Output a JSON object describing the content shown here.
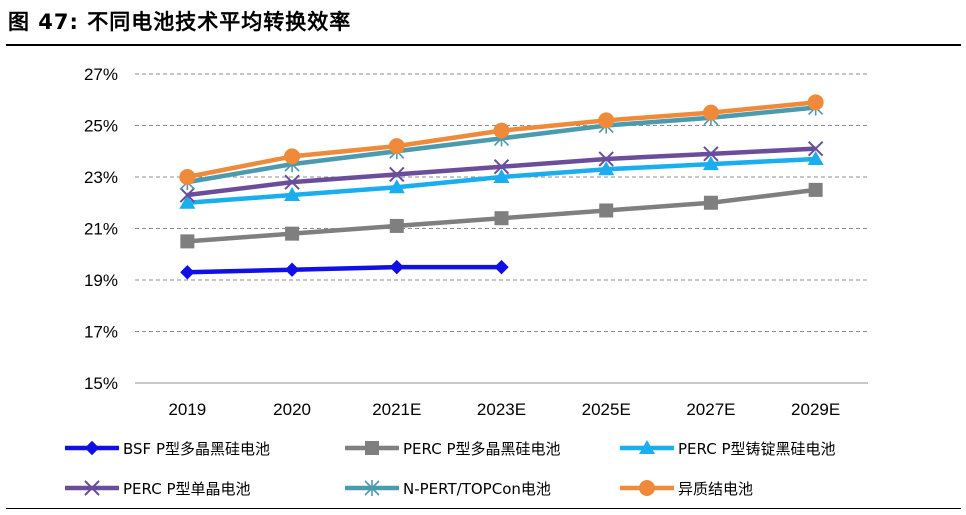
{
  "figure": {
    "title": "图 47: 不同电池技术平均转换效率"
  },
  "chart_data": {
    "type": "line",
    "title": "图 47: 不同电池技术平均转换效率",
    "categories": [
      "2019",
      "2020",
      "2021E",
      "2023E",
      "2025E",
      "2027E",
      "2029E"
    ],
    "y_ticks": [
      "15%",
      "17%",
      "19%",
      "21%",
      "23%",
      "25%",
      "27%"
    ],
    "ylim": [
      15,
      27
    ],
    "y_unit": "%",
    "grid": "horizontal dashed",
    "legend_position": "bottom",
    "series": [
      {
        "name": "BSF P型多晶黑硅电池",
        "color": "#1010E6",
        "marker": "diamond",
        "values": [
          19.3,
          19.4,
          19.5,
          19.5,
          null,
          null,
          null
        ]
      },
      {
        "name": "PERC P型多晶黑硅电池",
        "color": "#7F7F7F",
        "marker": "square",
        "values": [
          20.5,
          20.8,
          21.1,
          21.4,
          21.7,
          22.0,
          22.5
        ]
      },
      {
        "name": "PERC P型铸锭黑硅电池",
        "color": "#1AAEEF",
        "marker": "triangle",
        "values": [
          22.0,
          22.3,
          22.6,
          23.0,
          23.3,
          23.5,
          23.7
        ]
      },
      {
        "name": "PERC P型单晶电池",
        "color": "#6B4E9B",
        "marker": "x",
        "values": [
          22.3,
          22.8,
          23.1,
          23.4,
          23.7,
          23.9,
          24.1
        ]
      },
      {
        "name": "N-PERT/TOPCon电池",
        "color": "#4A9BB0",
        "marker": "asterisk",
        "values": [
          22.8,
          23.5,
          24.0,
          24.5,
          25.0,
          25.3,
          25.7
        ]
      },
      {
        "name": "异质结电池",
        "color": "#EE8A3A",
        "marker": "circle",
        "values": [
          23.0,
          23.8,
          24.2,
          24.8,
          25.2,
          25.5,
          25.9
        ]
      }
    ]
  }
}
